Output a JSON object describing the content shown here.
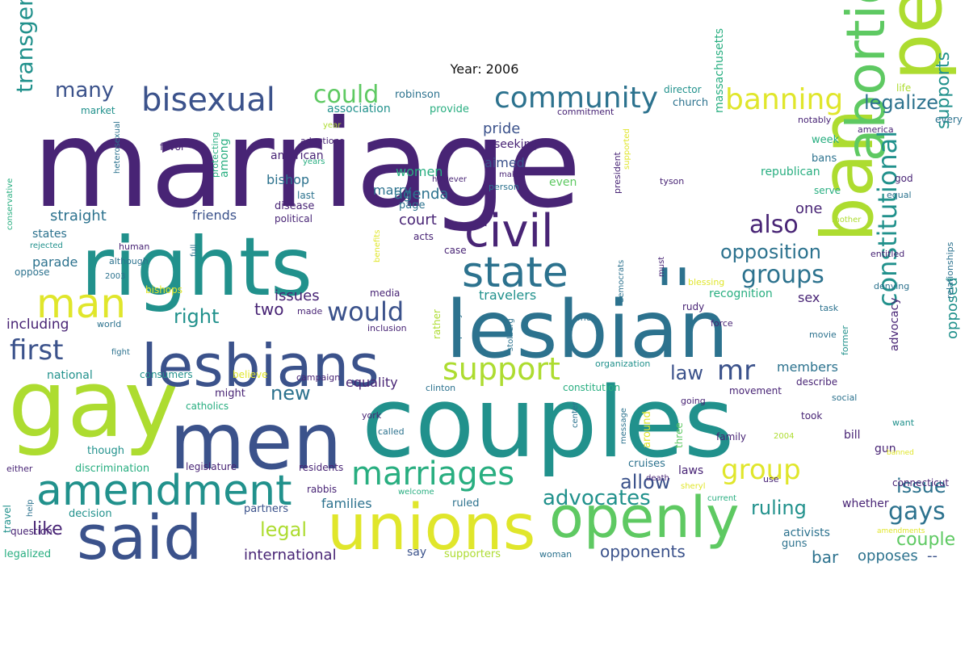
{
  "title": "Year: 2006",
  "palette": {
    "p1": "#440154",
    "p2": "#482475",
    "p3": "#3b528b",
    "p4": "#2c728e",
    "p5": "#21918c",
    "p6": "#28ae80",
    "p7": "#5ec962",
    "p8": "#addc30",
    "p9": "#e0e62b"
  },
  "words": [
    {
      "text": "marriage",
      "size": 150,
      "color": "p2"
    },
    {
      "text": "couples",
      "size": 120,
      "color": "p5"
    },
    {
      "text": "gay",
      "size": 115,
      "color": "p8"
    },
    {
      "text": "rights",
      "size": 100,
      "color": "p5"
    },
    {
      "text": "lesbian",
      "size": 98,
      "color": "p4"
    },
    {
      "text": "men",
      "size": 96,
      "color": "p3"
    },
    {
      "text": "people",
      "size": 92,
      "color": "p8"
    },
    {
      "text": "ban",
      "size": 88,
      "color": "p8"
    },
    {
      "text": "lesbians",
      "size": 72,
      "color": "p3"
    },
    {
      "text": "unions",
      "size": 78,
      "color": "p9"
    },
    {
      "text": "said",
      "size": 76,
      "color": "p3"
    },
    {
      "text": "openly",
      "size": 70,
      "color": "p7"
    },
    {
      "text": "abortion",
      "size": 66,
      "color": "p7"
    },
    {
      "text": "civil",
      "size": 56,
      "color": "p2"
    },
    {
      "text": "state",
      "size": 52,
      "color": "p4"
    },
    {
      "text": "''",
      "size": 80,
      "color": "p4"
    },
    {
      "text": "amendment",
      "size": 52,
      "color": "p5"
    },
    {
      "text": "man",
      "size": 50,
      "color": "p9"
    },
    {
      "text": "bisexual",
      "size": 40,
      "color": "p3"
    },
    {
      "text": "marriages",
      "size": 40,
      "color": "p6"
    },
    {
      "text": "support",
      "size": 38,
      "color": "p8"
    },
    {
      "text": "community",
      "size": 36,
      "color": "p4"
    },
    {
      "text": "banning",
      "size": 36,
      "color": "p9"
    },
    {
      "text": "constitutional",
      "size": 32,
      "color": "p5"
    },
    {
      "text": "group",
      "size": 34,
      "color": "p9"
    },
    {
      "text": "mr",
      "size": 34,
      "color": "p3"
    },
    {
      "text": "first",
      "size": 34,
      "color": "p3"
    },
    {
      "text": "would",
      "size": 32,
      "color": "p3"
    },
    {
      "text": "groups",
      "size": 30,
      "color": "p4"
    },
    {
      "text": "also",
      "size": 30,
      "color": "p2"
    },
    {
      "text": "could",
      "size": 30,
      "color": "p7"
    },
    {
      "text": "transgender",
      "size": 28,
      "color": "p5"
    },
    {
      "text": "gays",
      "size": 30,
      "color": "p4"
    },
    {
      "text": "advocates",
      "size": 26,
      "color": "p5"
    },
    {
      "text": "opposition",
      "size": 24,
      "color": "p4"
    },
    {
      "text": "ruling",
      "size": 24,
      "color": "p5"
    },
    {
      "text": "legal",
      "size": 24,
      "color": "p8"
    },
    {
      "text": "allow",
      "size": 24,
      "color": "p3"
    },
    {
      "text": "issue",
      "size": 24,
      "color": "p4"
    },
    {
      "text": "many",
      "size": 26,
      "color": "p3"
    },
    {
      "text": "right",
      "size": 24,
      "color": "p5"
    },
    {
      "text": "legalize",
      "size": 24,
      "color": "p4"
    },
    {
      "text": "supports",
      "size": 22,
      "color": "p5"
    },
    {
      "text": "couple",
      "size": 22,
      "color": "p7"
    },
    {
      "text": "law",
      "size": 24,
      "color": "p3"
    },
    {
      "text": "new",
      "size": 24,
      "color": "p4"
    },
    {
      "text": "like",
      "size": 22,
      "color": "p2"
    },
    {
      "text": "opposed",
      "size": 18,
      "color": "p5"
    },
    {
      "text": "opponents",
      "size": 20,
      "color": "p3"
    },
    {
      "text": "international",
      "size": 18,
      "color": "p2"
    },
    {
      "text": "court",
      "size": 18,
      "color": "p2"
    },
    {
      "text": "agenda",
      "size": 18,
      "color": "p4"
    },
    {
      "text": "straight",
      "size": 18,
      "color": "p4"
    },
    {
      "text": "pride",
      "size": 18,
      "color": "p3"
    },
    {
      "text": "issues",
      "size": 18,
      "color": "p2"
    },
    {
      "text": "two",
      "size": 20,
      "color": "p2"
    },
    {
      "text": "bar",
      "size": 20,
      "color": "p4"
    },
    {
      "text": "opposes",
      "size": 18,
      "color": "p4"
    },
    {
      "text": "--",
      "size": 18,
      "color": "p3"
    },
    {
      "text": "including",
      "size": 17,
      "color": "p2"
    },
    {
      "text": "travelers",
      "size": 16,
      "color": "p5"
    },
    {
      "text": "sex",
      "size": 16,
      "color": "p2"
    },
    {
      "text": "one",
      "size": 18,
      "color": "p2"
    },
    {
      "text": "massachusetts",
      "size": 14,
      "color": "p6"
    },
    {
      "text": "equality",
      "size": 16,
      "color": "p2"
    },
    {
      "text": "members",
      "size": 16,
      "color": "p4"
    },
    {
      "text": "families",
      "size": 16,
      "color": "p4"
    },
    {
      "text": "parade",
      "size": 16,
      "color": "p4"
    },
    {
      "text": "women",
      "size": 16,
      "color": "p6"
    },
    {
      "text": "aimed",
      "size": 16,
      "color": "p3"
    },
    {
      "text": "bishop",
      "size": 16,
      "color": "p4"
    },
    {
      "text": "marry",
      "size": 16,
      "color": "p4"
    },
    {
      "text": "friends",
      "size": 16,
      "color": "p3"
    },
    {
      "text": "national",
      "size": 14,
      "color": "p5"
    },
    {
      "text": "say",
      "size": 14,
      "color": "p3"
    },
    {
      "text": "laws",
      "size": 14,
      "color": "p2"
    },
    {
      "text": "whether",
      "size": 14,
      "color": "p2"
    },
    {
      "text": "advocacy",
      "size": 14,
      "color": "p2"
    },
    {
      "text": "activists",
      "size": 14,
      "color": "p4"
    },
    {
      "text": "guns",
      "size": 13,
      "color": "p4"
    },
    {
      "text": "gun",
      "size": 14,
      "color": "p2"
    },
    {
      "text": "bill",
      "size": 14,
      "color": "p2"
    },
    {
      "text": "recognition",
      "size": 14,
      "color": "p6"
    },
    {
      "text": "republican",
      "size": 14,
      "color": "p6"
    },
    {
      "text": "association",
      "size": 14,
      "color": "p5"
    },
    {
      "text": "robinson",
      "size": 13,
      "color": "p4"
    },
    {
      "text": "provide",
      "size": 13,
      "color": "p6"
    },
    {
      "text": "church",
      "size": 13,
      "color": "p4"
    },
    {
      "text": "director",
      "size": 12,
      "color": "p5"
    },
    {
      "text": "commitment",
      "size": 11,
      "color": "p2"
    },
    {
      "text": "american",
      "size": 14,
      "color": "p2"
    },
    {
      "text": "seeking",
      "size": 14,
      "color": "p2"
    },
    {
      "text": "adoptions",
      "size": 11,
      "color": "p2"
    },
    {
      "text": "favor",
      "size": 12,
      "color": "p2"
    },
    {
      "text": "among",
      "size": 14,
      "color": "p6"
    },
    {
      "text": "states",
      "size": 14,
      "color": "p4"
    },
    {
      "text": "market",
      "size": 12,
      "color": "p5"
    },
    {
      "text": "page",
      "size": 13,
      "color": "p4"
    },
    {
      "text": "even",
      "size": 14,
      "color": "p7"
    },
    {
      "text": "president",
      "size": 11,
      "color": "p2"
    },
    {
      "text": "week",
      "size": 13,
      "color": "p6"
    },
    {
      "text": "bans",
      "size": 13,
      "color": "p4"
    },
    {
      "text": "every",
      "size": 12,
      "color": "p4"
    },
    {
      "text": "notably",
      "size": 11,
      "color": "p2"
    },
    {
      "text": "america",
      "size": 11,
      "color": "p2"
    },
    {
      "text": "life",
      "size": 12,
      "color": "p8"
    },
    {
      "text": "god",
      "size": 12,
      "color": "p2"
    },
    {
      "text": "equal",
      "size": 11,
      "color": "p4"
    },
    {
      "text": "serve",
      "size": 12,
      "color": "p6"
    },
    {
      "text": "tyson",
      "size": 11,
      "color": "p2"
    },
    {
      "text": "mother",
      "size": 10,
      "color": "p8"
    },
    {
      "text": "entitled",
      "size": 11,
      "color": "p2"
    },
    {
      "text": "denying",
      "size": 11,
      "color": "p4"
    },
    {
      "text": "relationships",
      "size": 11,
      "color": "p4"
    },
    {
      "text": "task",
      "size": 11,
      "color": "p4"
    },
    {
      "text": "movie",
      "size": 11,
      "color": "p4"
    },
    {
      "text": "former",
      "size": 11,
      "color": "p5"
    },
    {
      "text": "force",
      "size": 11,
      "color": "p2"
    },
    {
      "text": "ones",
      "size": 11,
      "color": "p4"
    },
    {
      "text": "rudy",
      "size": 12,
      "color": "p2"
    },
    {
      "text": "blessing",
      "size": 11,
      "color": "p9"
    },
    {
      "text": "democrats",
      "size": 10,
      "color": "p4"
    },
    {
      "text": "must",
      "size": 10,
      "color": "p2"
    },
    {
      "text": "political",
      "size": 12,
      "color": "p2"
    },
    {
      "text": "disease",
      "size": 13,
      "color": "p2"
    },
    {
      "text": "last",
      "size": 12,
      "color": "p4"
    },
    {
      "text": "acts",
      "size": 12,
      "color": "p2"
    },
    {
      "text": "case",
      "size": 12,
      "color": "p2"
    },
    {
      "text": "media",
      "size": 12,
      "color": "p2"
    },
    {
      "text": "made",
      "size": 11,
      "color": "p2"
    },
    {
      "text": "world",
      "size": 11,
      "color": "p4"
    },
    {
      "text": "fight",
      "size": 10,
      "color": "p4"
    },
    {
      "text": "inclusion",
      "size": 11,
      "color": "p2"
    },
    {
      "text": "policy",
      "size": 11,
      "color": "p4"
    },
    {
      "text": "stolberg",
      "size": 10,
      "color": "p4"
    },
    {
      "text": "rather",
      "size": 12,
      "color": "p8"
    },
    {
      "text": "organization",
      "size": 11,
      "color": "p5"
    },
    {
      "text": "describe",
      "size": 12,
      "color": "p2"
    },
    {
      "text": "social",
      "size": 11,
      "color": "p4"
    },
    {
      "text": "took",
      "size": 12,
      "color": "p2"
    },
    {
      "text": "movement",
      "size": 12,
      "color": "p2"
    },
    {
      "text": "going",
      "size": 11,
      "color": "p2"
    },
    {
      "text": "family",
      "size": 12,
      "color": "p2"
    },
    {
      "text": "2004",
      "size": 10,
      "color": "p8"
    },
    {
      "text": "three",
      "size": 12,
      "color": "p7"
    },
    {
      "text": "around",
      "size": 13,
      "color": "p9"
    },
    {
      "text": "message",
      "size": 10,
      "color": "p4"
    },
    {
      "text": "center",
      "size": 10,
      "color": "p4"
    },
    {
      "text": "want",
      "size": 11,
      "color": "p5"
    },
    {
      "text": "banned",
      "size": 9,
      "color": "p9"
    },
    {
      "text": "connecticut",
      "size": 12,
      "color": "p2"
    },
    {
      "text": "amendments",
      "size": 9,
      "color": "p9"
    },
    {
      "text": "use",
      "size": 11,
      "color": "p2"
    },
    {
      "text": "current",
      "size": 10,
      "color": "p6"
    },
    {
      "text": "sheryl",
      "size": 10,
      "color": "p9"
    },
    {
      "text": "death",
      "size": 10,
      "color": "p2"
    },
    {
      "text": "cruises",
      "size": 13,
      "color": "p4"
    },
    {
      "text": "woman",
      "size": 11,
      "color": "p4"
    },
    {
      "text": "supporters",
      "size": 13,
      "color": "p8"
    },
    {
      "text": "ruled",
      "size": 13,
      "color": "p4"
    },
    {
      "text": "partners",
      "size": 13,
      "color": "p3"
    },
    {
      "text": "welcome",
      "size": 10,
      "color": "p6"
    },
    {
      "text": "rabbis",
      "size": 12,
      "color": "p2"
    },
    {
      "text": "residents",
      "size": 12,
      "color": "p2"
    },
    {
      "text": "legislature",
      "size": 12,
      "color": "p2"
    },
    {
      "text": "discrimination",
      "size": 13,
      "color": "p6"
    },
    {
      "text": "either",
      "size": 11,
      "color": "p2"
    },
    {
      "text": "decision",
      "size": 13,
      "color": "p5"
    },
    {
      "text": "question",
      "size": 12,
      "color": "p2"
    },
    {
      "text": "travel",
      "size": 12,
      "color": "p5"
    },
    {
      "text": "help",
      "size": 10,
      "color": "p4"
    },
    {
      "text": "legalized",
      "size": 13,
      "color": "p6"
    },
    {
      "text": "though",
      "size": 13,
      "color": "p5"
    },
    {
      "text": "might",
      "size": 13,
      "color": "p2"
    },
    {
      "text": "catholics",
      "size": 12,
      "color": "p6"
    },
    {
      "text": "believe",
      "size": 12,
      "color": "p9"
    },
    {
      "text": "campaign",
      "size": 11,
      "color": "p2"
    },
    {
      "text": "clinton",
      "size": 11,
      "color": "p4"
    },
    {
      "text": "constitution",
      "size": 12,
      "color": "p6"
    },
    {
      "text": "consumers",
      "size": 12,
      "color": "p5"
    },
    {
      "text": "york",
      "size": 11,
      "color": "p2"
    },
    {
      "text": "called",
      "size": 11,
      "color": "p4"
    },
    {
      "text": "oppose",
      "size": 12,
      "color": "p4"
    },
    {
      "text": "2003",
      "size": 10,
      "color": "p4"
    },
    {
      "text": "although",
      "size": 11,
      "color": "p4"
    },
    {
      "text": "human",
      "size": 11,
      "color": "p2"
    },
    {
      "text": "bishops",
      "size": 12,
      "color": "p9"
    },
    {
      "text": "full",
      "size": 10,
      "color": "p4"
    },
    {
      "text": "rejected",
      "size": 10,
      "color": "p5"
    },
    {
      "text": "conservative",
      "size": 10,
      "color": "p6"
    },
    {
      "text": "heterosexual",
      "size": 10,
      "color": "p4"
    },
    {
      "text": "protecting",
      "size": 11,
      "color": "p6"
    },
    {
      "text": "year",
      "size": 10,
      "color": "p8"
    },
    {
      "text": "years",
      "size": 10,
      "color": "p6"
    },
    {
      "text": "however",
      "size": 10,
      "color": "p2"
    },
    {
      "text": "make",
      "size": 10,
      "color": "p2"
    },
    {
      "text": "person",
      "size": 11,
      "color": "p4"
    },
    {
      "text": "supported",
      "size": 10,
      "color": "p9"
    },
    {
      "text": "benefits",
      "size": 10,
      "color": "p9"
    }
  ]
}
